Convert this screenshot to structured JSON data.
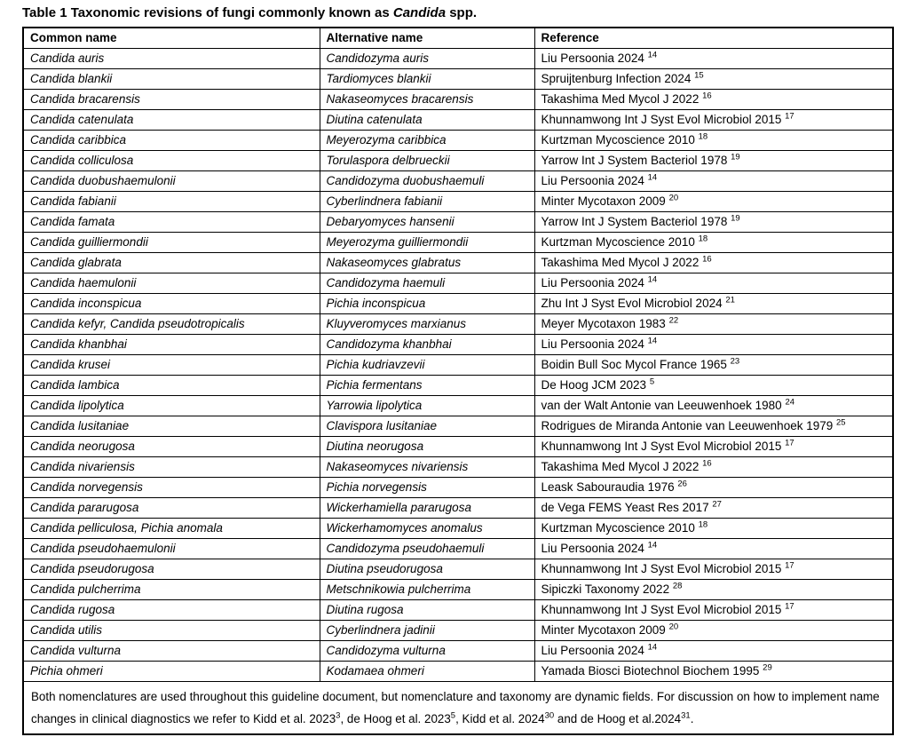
{
  "title": {
    "segments": [
      {
        "t": "Table 1 Taxonomic revisions of fungi commonly known as "
      },
      {
        "i": "Candida"
      },
      {
        "t": " spp."
      }
    ]
  },
  "table": {
    "columns": [
      "Common name",
      "Alternative name",
      "Reference"
    ],
    "rows": [
      {
        "common": "Candida auris",
        "alt": "Candidozyma auris",
        "ref": "Liu Persoonia 2024",
        "sup": "14"
      },
      {
        "common": "Candida blankii",
        "alt": "Tardiomyces blankii",
        "ref": "Spruijtenburg Infection 2024",
        "sup": "15"
      },
      {
        "common": "Candida bracarensis",
        "alt": "Nakaseomyces bracarensis",
        "ref": "Takashima Med Mycol J 2022",
        "sup": "16"
      },
      {
        "common": "Candida catenulata",
        "alt": "Diutina catenulata",
        "ref": "Khunnamwong Int J Syst Evol Microbiol 2015",
        "sup": "17"
      },
      {
        "common": "Candida caribbica",
        "alt": "Meyerozyma caribbica",
        "ref": "Kurtzman Mycoscience 2010",
        "sup": "18"
      },
      {
        "common": "Candida colliculosa",
        "alt": "Torulaspora delbrueckii",
        "ref": "Yarrow Int J System Bacteriol 1978",
        "sup": "19"
      },
      {
        "common": "Candida duobushaemulonii",
        "alt": "Candidozyma duobushaemuli",
        "ref": "Liu Persoonia 2024",
        "sup": "14"
      },
      {
        "common": "Candida fabianii",
        "alt": "Cyberlindnera fabianii",
        "ref": "Minter Mycotaxon 2009",
        "sup": "20"
      },
      {
        "common": "Candida famata",
        "alt": "Debaryomyces hansenii",
        "ref": "Yarrow Int J System Bacteriol 1978",
        "sup": "19"
      },
      {
        "common": "Candida guilliermondii",
        "alt": "Meyerozyma guilliermondii",
        "ref": "Kurtzman Mycoscience 2010",
        "sup": "18"
      },
      {
        "common": "Candida glabrata",
        "alt": "Nakaseomyces glabratus",
        "ref": "Takashima Med Mycol J 2022",
        "sup": "16"
      },
      {
        "common": "Candida haemulonii",
        "alt": "Candidozyma haemuli",
        "ref": "Liu Persoonia 2024",
        "sup": "14"
      },
      {
        "common": "Candida inconspicua",
        "alt": "Pichia inconspicua",
        "ref": "Zhu Int J Syst Evol Microbiol 2024",
        "sup": "21"
      },
      {
        "common": "Candida kefyr, Candida pseudotropicalis",
        "alt": "Kluyveromyces marxianus",
        "ref": "Meyer Mycotaxon 1983",
        "sup": "22"
      },
      {
        "common": "Candida khanbhai",
        "alt": "Candidozyma khanbhai",
        "ref": "Liu Persoonia 2024",
        "sup": "14"
      },
      {
        "common": "Candida krusei",
        "alt": "Pichia kudriavzevii",
        "ref": "Boidin Bull Soc Mycol France 1965",
        "sup": "23"
      },
      {
        "common": "Candida lambica",
        "alt": "Pichia fermentans",
        "ref": "De Hoog JCM 2023",
        "sup": "5"
      },
      {
        "common": "Candida lipolytica",
        "alt": "Yarrowia lipolytica",
        "ref": "van der Walt Antonie van Leeuwenhoek 1980",
        "sup": "24"
      },
      {
        "common": "Candida lusitaniae",
        "alt": "Clavispora lusitaniae",
        "ref": "Rodrigues de Miranda Antonie van Leeuwenhoek 1979",
        "sup": "25"
      },
      {
        "common": "Candida neorugosa",
        "alt": "Diutina neorugosa",
        "ref": "Khunnamwong Int J Syst Evol Microbiol 2015",
        "sup": "17"
      },
      {
        "common": "Candida nivariensis",
        "alt": "Nakaseomyces nivariensis",
        "ref": "Takashima Med Mycol J 2022",
        "sup": "16"
      },
      {
        "common": "Candida norvegensis",
        "alt": "Pichia norvegensis",
        "ref": "Leask Sabouraudia 1976",
        "sup": "26"
      },
      {
        "common": "Candida pararugosa",
        "alt": "Wickerhamiella pararugosa",
        "ref": "de Vega FEMS Yeast Res 2017",
        "sup": "27"
      },
      {
        "common": "Candida pelliculosa, Pichia anomala",
        "alt": "Wickerhamomyces anomalus",
        "ref": "Kurtzman Mycoscience 2010",
        "sup": "18"
      },
      {
        "common": "Candida pseudohaemulonii",
        "alt": "Candidozyma pseudohaemuli",
        "ref": "Liu Persoonia 2024",
        "sup": "14"
      },
      {
        "common": "Candida pseudorugosa",
        "alt": "Diutina pseudorugosa",
        "ref": "Khunnamwong Int J Syst Evol Microbiol 2015",
        "sup": "17"
      },
      {
        "common": "Candida pulcherrima",
        "alt": "Metschnikowia pulcherrima",
        "ref": "Sipiczki Taxonomy 2022",
        "sup": "28"
      },
      {
        "common": "Candida rugosa",
        "alt": "Diutina rugosa",
        "ref": "Khunnamwong Int J Syst Evol Microbiol 2015",
        "sup": "17"
      },
      {
        "common": "Candida utilis",
        "alt": "Cyberlindnera jadinii",
        "ref": "Minter Mycotaxon 2009",
        "sup": "20"
      },
      {
        "common": "Candida vulturna",
        "alt": "Candidozyma vulturna",
        "ref": "Liu Persoonia 2024",
        "sup": "14"
      },
      {
        "common": "Pichia ohmeri",
        "alt": "Kodamaea ohmeri",
        "ref": "Yamada Biosci Biotechnol Biochem 1995",
        "sup": "29"
      }
    ],
    "footnote_segments": [
      {
        "t": "Both nomenclatures are used throughout this guideline document, but nomenclature and taxonomy are dynamic fields. For discussion on how to implement name changes in clinical diagnostics we refer to Kidd et al. 2023"
      },
      {
        "s": "3"
      },
      {
        "t": ", de Hoog et al. 2023"
      },
      {
        "s": "5"
      },
      {
        "t": ", Kidd et al. 2024"
      },
      {
        "s": "30"
      },
      {
        "t": " and de Hoog et al.2024"
      },
      {
        "s": "31"
      },
      {
        "t": "."
      }
    ]
  },
  "colors": {
    "text": "#000000",
    "border": "#000000",
    "background": "#ffffff"
  }
}
